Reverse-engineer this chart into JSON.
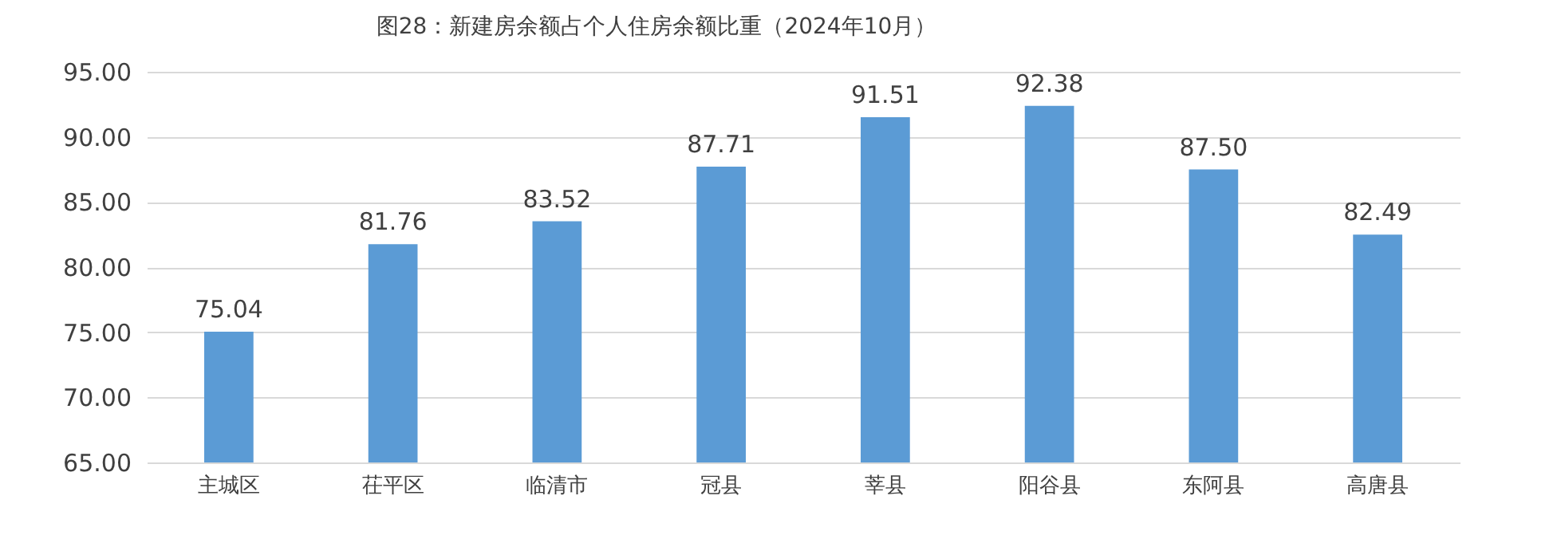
{
  "chart_data": {
    "type": "bar",
    "title": "图28：新建房余额占个人住房余额比重（2024年10月）",
    "categories": [
      "主城区",
      "茌平区",
      "临清市",
      "冠县",
      "莘县",
      "阳谷县",
      "东阿县",
      "高唐县"
    ],
    "values": [
      75.04,
      81.76,
      83.52,
      87.71,
      91.51,
      92.38,
      87.5,
      82.49
    ],
    "value_labels": [
      "75.04",
      "81.76",
      "83.52",
      "87.71",
      "91.51",
      "92.38",
      "87.50",
      "82.49"
    ],
    "color": "#5b9bd5",
    "ylim": [
      65,
      95
    ],
    "yticks": [
      {
        "value": 65,
        "label": "65.00"
      },
      {
        "value": 70,
        "label": "70.00"
      },
      {
        "value": 75,
        "label": "75.00"
      },
      {
        "value": 80,
        "label": "80.00"
      },
      {
        "value": 85,
        "label": "85.00"
      },
      {
        "value": 90,
        "label": "90.00"
      },
      {
        "value": 95,
        "label": "95.00"
      }
    ],
    "grid": "y"
  }
}
